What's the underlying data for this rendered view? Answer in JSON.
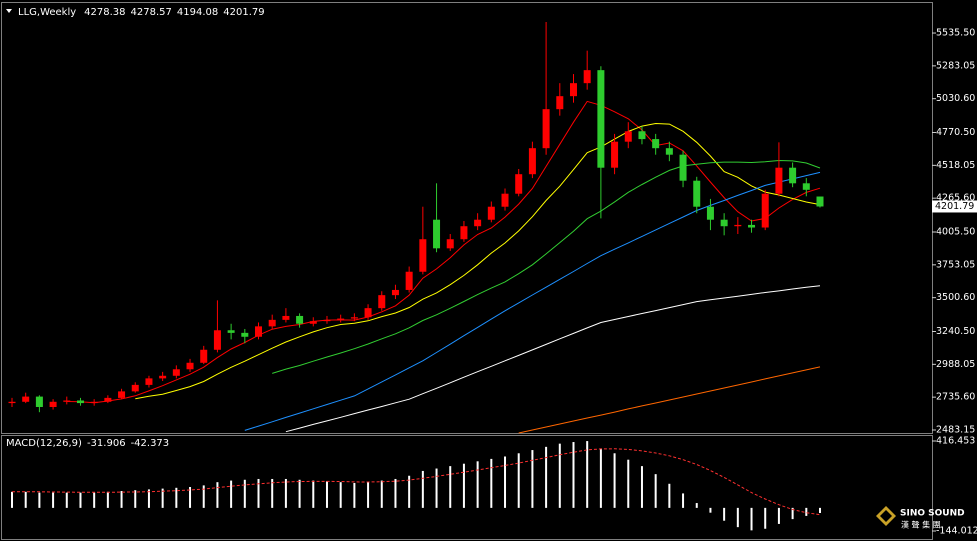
{
  "chart_data": [
    {
      "type": "candlestick",
      "title": "LLG,Weekly",
      "open": [
        2690,
        2700,
        2740,
        2660,
        2700,
        2710,
        2690,
        2700,
        2730,
        2780,
        2830,
        2880,
        2900,
        2950,
        3000,
        3100,
        3250,
        3230,
        3200,
        3280,
        3330,
        3360,
        3300,
        3320,
        3330,
        3340,
        3350,
        3420,
        3520,
        3560,
        3700,
        4100,
        3880,
        3950,
        4050,
        4100,
        4200,
        4300,
        4450,
        4650,
        4950,
        5050,
        5150,
        5250,
        4500,
        4700,
        4780,
        4720,
        4650,
        4600,
        4400,
        4200,
        4100,
        4050,
        4060,
        4040,
        4300,
        4500,
        4380,
        4278.38
      ],
      "high": [
        2730,
        2770,
        2750,
        2720,
        2740,
        2730,
        2720,
        2750,
        2800,
        2850,
        2900,
        2930,
        2980,
        3030,
        3130,
        3480,
        3300,
        3260,
        3310,
        3370,
        3420,
        3380,
        3350,
        3360,
        3370,
        3380,
        3450,
        3550,
        3600,
        3740,
        4200,
        4380,
        3990,
        4090,
        4150,
        4240,
        4340,
        4490,
        4700,
        5620,
        5150,
        5220,
        5400,
        5280,
        4760,
        4850,
        4820,
        4760,
        4700,
        4630,
        4430,
        4260,
        4150,
        4120,
        4100,
        4330,
        4695,
        4540,
        4420,
        4278.57
      ],
      "low": [
        2660,
        2690,
        2620,
        2640,
        2680,
        2670,
        2670,
        2690,
        2720,
        2770,
        2810,
        2860,
        2880,
        2930,
        2990,
        3080,
        3180,
        3150,
        3180,
        3260,
        3310,
        3270,
        3280,
        3300,
        3310,
        3320,
        3330,
        3400,
        3490,
        3540,
        3680,
        3850,
        3860,
        3930,
        4020,
        4080,
        4170,
        4280,
        4420,
        4600,
        4900,
        5000,
        5100,
        4110,
        4450,
        4650,
        4680,
        4600,
        4550,
        4350,
        4150,
        4020,
        3980,
        3990,
        4000,
        4020,
        4280,
        4350,
        4280,
        4194.08
      ],
      "close": [
        2700,
        2740,
        2660,
        2700,
        2710,
        2690,
        2700,
        2730,
        2780,
        2830,
        2880,
        2900,
        2950,
        3000,
        3100,
        3250,
        3230,
        3200,
        3280,
        3330,
        3360,
        3300,
        3320,
        3330,
        3340,
        3350,
        3420,
        3520,
        3560,
        3700,
        3950,
        3880,
        3950,
        4050,
        4100,
        4200,
        4300,
        4450,
        4650,
        4950,
        5050,
        5150,
        5250,
        4500,
        4700,
        4780,
        4720,
        4650,
        4600,
        4400,
        4200,
        4100,
        4050,
        4060,
        4040,
        4300,
        4500,
        4380,
        4330,
        4201.79
      ],
      "up_color": "#ff0000",
      "down_color": "#2ecc2e",
      "series": [
        {
          "color": "#ff0000",
          "values": [
            null,
            null,
            null,
            null,
            2702,
            2700,
            2692,
            2706,
            2722,
            2746,
            2784,
            2824,
            2868,
            2912,
            2966,
            3040,
            3106,
            3156,
            3212,
            3258,
            3280,
            3294,
            3318,
            3328,
            3330,
            3328,
            3352,
            3392,
            3438,
            3520,
            3650,
            3722,
            3808,
            3906,
            3986,
            4036,
            4120,
            4220,
            4340,
            4510,
            4680,
            4850,
            5010,
            4980,
            4930,
            4876,
            4790,
            4670,
            4690,
            4630,
            4514,
            4390,
            4270,
            4162,
            4090,
            4110,
            4190,
            4256,
            4310,
            4342
          ]
        },
        {
          "color": "#ffff00",
          "values": [
            null,
            null,
            null,
            null,
            null,
            null,
            null,
            null,
            null,
            2724,
            2742,
            2758,
            2787,
            2817,
            2856,
            2912,
            2965,
            3012,
            3062,
            3112,
            3160,
            3200,
            3237,
            3270,
            3294,
            3304,
            3323,
            3355,
            3383,
            3425,
            3489,
            3537,
            3600,
            3672,
            3753,
            3843,
            3921,
            4014,
            4123,
            4248,
            4358,
            4485,
            4615,
            4660,
            4720,
            4778,
            4820,
            4840,
            4835,
            4780,
            4695,
            4590,
            4470,
            4426,
            4360,
            4312,
            4290,
            4263,
            4236,
            4216
          ]
        },
        {
          "color": "#32cd32",
          "values": [
            null,
            null,
            null,
            null,
            null,
            null,
            null,
            null,
            null,
            null,
            null,
            null,
            null,
            null,
            null,
            null,
            null,
            null,
            null,
            2918,
            2951,
            2979,
            3012,
            3044,
            3075,
            3108,
            3144,
            3184,
            3223,
            3269,
            3325,
            3369,
            3419,
            3471,
            3524,
            3574,
            3622,
            3685,
            3753,
            3837,
            3924,
            4011,
            4108,
            4166,
            4237,
            4311,
            4371,
            4427,
            4479,
            4514,
            4527,
            4538,
            4543,
            4543,
            4540,
            4545,
            4555,
            4552,
            4536,
            4498
          ]
        },
        {
          "color": "#1e90ff",
          "values": [
            null,
            null,
            null,
            null,
            null,
            null,
            null,
            null,
            null,
            null,
            null,
            null,
            null,
            null,
            null,
            null,
            null,
            2480,
            2513,
            2546,
            2580,
            2613,
            2646,
            2679,
            2712,
            2745,
            2799,
            2853,
            2907,
            2961,
            3015,
            3079,
            3143,
            3208,
            3272,
            3336,
            3400,
            3460,
            3521,
            3581,
            3642,
            3702,
            3763,
            3823,
            3873,
            3922,
            3972,
            4022,
            4072,
            4121,
            4171,
            4210,
            4248,
            4287,
            4325,
            4364,
            4389,
            4414,
            4439,
            4464
          ]
        },
        {
          "color": "#ffffff",
          "values": [
            null,
            null,
            null,
            null,
            null,
            null,
            null,
            null,
            null,
            null,
            null,
            null,
            null,
            null,
            null,
            null,
            null,
            null,
            null,
            null,
            2470,
            2498,
            2526,
            2553,
            2581,
            2609,
            2637,
            2664,
            2692,
            2720,
            2762,
            2804,
            2846,
            2889,
            2931,
            2973,
            3015,
            3057,
            3099,
            3141,
            3184,
            3226,
            3268,
            3310,
            3333,
            3356,
            3379,
            3401,
            3424,
            3447,
            3470,
            3484,
            3498,
            3512,
            3526,
            3540,
            3553,
            3567,
            3580,
            3593
          ]
        },
        {
          "color": "#ff6600",
          "values": [
            null,
            null,
            null,
            null,
            null,
            null,
            null,
            null,
            null,
            null,
            null,
            null,
            null,
            null,
            null,
            null,
            null,
            null,
            null,
            null,
            null,
            null,
            null,
            null,
            null,
            null,
            null,
            null,
            null,
            null,
            null,
            null,
            null,
            null,
            null,
            null,
            null,
            2460,
            2483,
            2506,
            2529,
            2552,
            2575,
            2598,
            2621,
            2645,
            2668,
            2691,
            2714,
            2737,
            2760,
            2783,
            2806,
            2829,
            2852,
            2876,
            2899,
            2922,
            2945,
            2968
          ]
        }
      ],
      "ylim": [
        2460,
        5751
      ],
      "yticks": [
        {
          "value": 5535.5,
          "label": "5535.50"
        },
        5283.05,
        {
          "value": 5030.6,
          "label": "5030.60"
        },
        {
          "value": 4770.5,
          "label": "4770.50"
        },
        4518.05,
        {
          "value": 4265.6,
          "label": "4265.60"
        },
        {
          "value": 4005.5,
          "label": "4005.50"
        },
        3753.05,
        {
          "value": 3500.6,
          "label": "3500.60"
        },
        {
          "value": 3240.5,
          "label": "3240.50"
        },
        2988.05,
        {
          "value": 2735.6,
          "label": "2735.60"
        },
        2483.15
      ]
    },
    {
      "type": "macd",
      "title": "MACD(12,26,9)",
      "series": [
        {
          "color": "#ffffff",
          "values": [
            100,
            100,
            95,
            95,
            95,
            95,
            95,
            100,
            105,
            110,
            115,
            120,
            125,
            130,
            140,
            160,
            170,
            175,
            180,
            180,
            180,
            175,
            170,
            165,
            160,
            155,
            160,
            170,
            180,
            200,
            230,
            245,
            260,
            275,
            290,
            305,
            320,
            340,
            360,
            380,
            400,
            410,
            416,
            370,
            340,
            300,
            260,
            210,
            150,
            90,
            30,
            -30,
            -80,
            -120,
            -140,
            -130,
            -100,
            -70,
            -50,
            -31.906
          ]
        },
        {
          "color": "#ff3030",
          "values": [
            100,
            100,
            100,
            99,
            98,
            97,
            97,
            97,
            98,
            99,
            101,
            104,
            107,
            111,
            117,
            126,
            135,
            143,
            150,
            156,
            161,
            164,
            165,
            165,
            164,
            162,
            161,
            163,
            166,
            173,
            184,
            196,
            209,
            222,
            236,
            250,
            264,
            279,
            296,
            313,
            331,
            347,
            361,
            367,
            368,
            364,
            355,
            342,
            324,
            300,
            270,
            233,
            190,
            143,
            95,
            55,
            20,
            -10,
            -30,
            -42.373
          ]
        }
      ],
      "ylim": [
        -144.012,
        416.453
      ],
      "yticks": [
        416.453,
        -144.012
      ]
    }
  ],
  "logo": {
    "name": "SINO SOUND",
    "subtitle": "漢 聲 集 團"
  }
}
